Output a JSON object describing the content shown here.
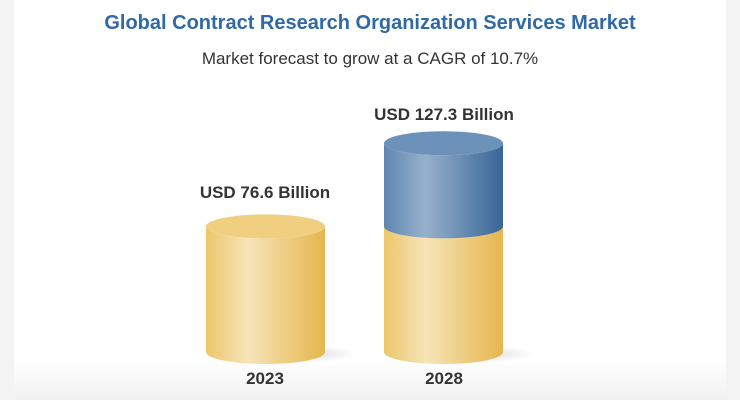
{
  "chart_data": {
    "type": "bar",
    "title": "Global Contract Research Organization Services Market",
    "subtitle": "Market forecast to grow at a CAGR of 10.7%",
    "categories": [
      "2023",
      "2028"
    ],
    "values": [
      76.6,
      127.3
    ],
    "value_labels": [
      "USD 76.6 Billion",
      "USD 127.3 Billion"
    ],
    "unit": "USD Billion",
    "colors": {
      "base": "#e9c45f",
      "growth": "#4a78a8",
      "title": "#2f6aa7"
    }
  }
}
